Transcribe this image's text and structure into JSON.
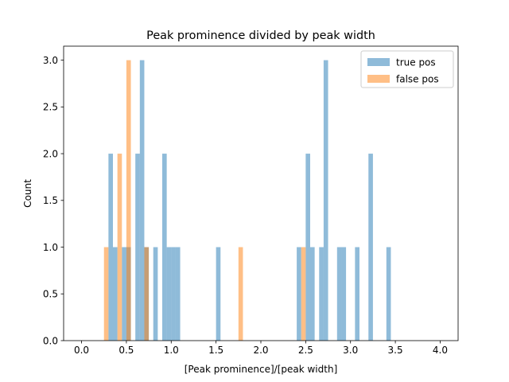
{
  "chart_data": {
    "type": "bar",
    "title": "Peak prominence divided by peak width",
    "xlabel": "[Peak prominence]/[peak width]",
    "ylabel": "Count",
    "xlim": [
      -0.2,
      4.2
    ],
    "ylim": [
      0,
      3.15
    ],
    "xticks": [
      "0.0",
      "0.5",
      "1.0",
      "1.5",
      "2.0",
      "2.5",
      "3.0",
      "3.5",
      "4.0"
    ],
    "yticks": [
      "0.0",
      "0.5",
      "1.0",
      "1.5",
      "2.0",
      "2.5",
      "3.0"
    ],
    "bin_width": 0.05,
    "grid": false,
    "legend_position": "top-right",
    "series": [
      {
        "name": "true pos",
        "color": "#1f77b4",
        "alpha": 0.5,
        "bins": [
          {
            "x0": 0.3,
            "count": 2
          },
          {
            "x0": 0.35,
            "count": 1
          },
          {
            "x0": 0.45,
            "count": 1
          },
          {
            "x0": 0.5,
            "count": 1
          },
          {
            "x0": 0.6,
            "count": 2
          },
          {
            "x0": 0.65,
            "count": 3
          },
          {
            "x0": 0.7,
            "count": 1
          },
          {
            "x0": 0.8,
            "count": 1
          },
          {
            "x0": 0.9,
            "count": 2
          },
          {
            "x0": 0.95,
            "count": 1
          },
          {
            "x0": 1.0,
            "count": 1
          },
          {
            "x0": 1.05,
            "count": 1
          },
          {
            "x0": 1.5,
            "count": 1
          },
          {
            "x0": 2.4,
            "count": 1
          },
          {
            "x0": 2.5,
            "count": 2
          },
          {
            "x0": 2.55,
            "count": 1
          },
          {
            "x0": 2.65,
            "count": 1
          },
          {
            "x0": 2.7,
            "count": 3
          },
          {
            "x0": 2.85,
            "count": 1
          },
          {
            "x0": 2.9,
            "count": 1
          },
          {
            "x0": 3.05,
            "count": 1
          },
          {
            "x0": 3.2,
            "count": 2
          },
          {
            "x0": 3.4,
            "count": 1
          }
        ]
      },
      {
        "name": "false pos",
        "color": "#ff7f0e",
        "alpha": 0.5,
        "bins": [
          {
            "x0": 0.25,
            "count": 1
          },
          {
            "x0": 0.4,
            "count": 2
          },
          {
            "x0": 0.5,
            "count": 3
          },
          {
            "x0": 0.7,
            "count": 1
          },
          {
            "x0": 1.75,
            "count": 1
          },
          {
            "x0": 2.45,
            "count": 1
          }
        ]
      }
    ]
  }
}
